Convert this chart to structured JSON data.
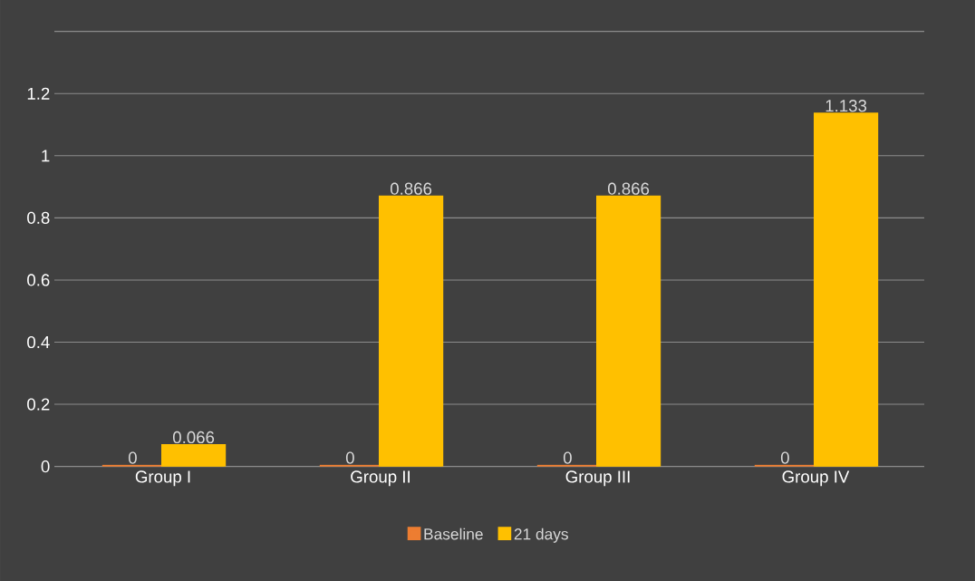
{
  "chart_data": {
    "type": "bar",
    "categories": [
      "Group I",
      "Group II",
      "Group III",
      "Group IV"
    ],
    "series": [
      {
        "name": "Baseline",
        "color": "#ed7d31",
        "values": [
          0,
          0,
          0,
          0
        ]
      },
      {
        "name": "21 days",
        "color": "#ffc000",
        "values": [
          0.066,
          0.866,
          0.866,
          1.133
        ]
      }
    ],
    "ylim": [
      0,
      1.4
    ],
    "yticks": [
      0,
      0.2,
      0.4,
      0.6,
      0.8,
      1,
      1.2,
      {
        "value": 1.4,
        "label": null
      }
    ],
    "grid": "y",
    "legend": "bottom",
    "data_labels": true
  }
}
